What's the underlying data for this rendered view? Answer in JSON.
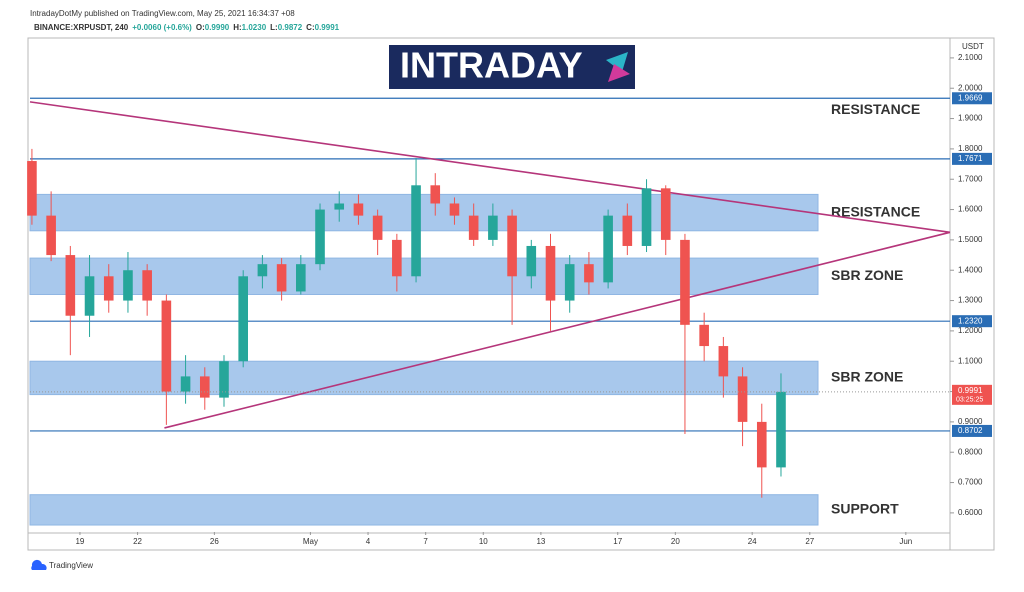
{
  "header": {
    "published": "IntradayDotMy published on TradingView.com, May 25, 2021 16:34:37 +08",
    "symbol": "BINANCE:XRPUSDT, 240",
    "ohlc": [
      {
        "label": "O:",
        "value": "0.9990"
      },
      {
        "label": "H:",
        "value": "1.0230"
      },
      {
        "label": "L:",
        "value": "0.9872"
      },
      {
        "label": "C:",
        "value": "0.9991"
      }
    ],
    "change": "+0.0060 (+0.6%)"
  },
  "logo": "INTRADAY",
  "footer": "TradingView",
  "chart_data": {
    "type": "candlestick",
    "currency": "USDT",
    "xlim": [
      16.4,
      64.3
    ],
    "ylim": [
      0.537,
      2.159
    ],
    "xticks": [
      19,
      22,
      26,
      {
        "value": 31,
        "label": "May"
      },
      {
        "value": 34,
        "label": "4"
      },
      {
        "value": 37,
        "label": "7"
      },
      {
        "value": 40,
        "label": "10"
      },
      {
        "value": 43,
        "label": "13"
      },
      {
        "value": 47,
        "label": "17"
      },
      {
        "value": 50,
        "label": "20"
      },
      {
        "value": 54,
        "label": "24"
      },
      {
        "value": 57,
        "label": "27"
      },
      {
        "value": 62,
        "label": "Jun"
      }
    ],
    "yticks": [
      {
        "value": 0.6,
        "label": "0.6000"
      },
      {
        "value": 0.7,
        "label": "0.7000"
      },
      {
        "value": 0.8,
        "label": "0.8000"
      },
      {
        "value": 0.9,
        "label": "0.9000"
      },
      {
        "value": 1.0,
        "label": "1.0000"
      },
      {
        "value": 1.1,
        "label": "1.1000"
      },
      {
        "value": 1.2,
        "label": "1.2000"
      },
      {
        "value": 1.3,
        "label": "1.3000"
      },
      {
        "value": 1.4,
        "label": "1.4000"
      },
      {
        "value": 1.5,
        "label": "1.5000"
      },
      {
        "value": 1.6,
        "label": "1.6000"
      },
      {
        "value": 1.7,
        "label": "1.7000"
      },
      {
        "value": 1.8,
        "label": "1.8000"
      },
      {
        "value": 1.9,
        "label": "1.9000"
      },
      {
        "value": 2.0,
        "label": "2.0000"
      },
      {
        "value": 2.1,
        "label": "2.1000"
      }
    ],
    "up_color": "#26a69a",
    "down_color": "#ef5350",
    "candles": {
      "x": [
        16,
        17,
        18,
        19,
        20,
        21,
        22,
        23,
        24,
        25,
        26,
        27,
        28,
        29,
        30,
        31,
        32,
        33,
        34,
        35,
        36,
        37,
        38,
        39,
        40,
        41,
        42,
        43,
        44,
        45,
        46,
        47,
        48,
        49,
        50,
        51,
        52,
        53,
        54,
        55
      ],
      "open": [
        1.76,
        1.58,
        1.45,
        1.25,
        1.38,
        1.3,
        1.4,
        1.3,
        1.0,
        1.05,
        0.98,
        1.1,
        1.38,
        1.42,
        1.33,
        1.42,
        1.6,
        1.62,
        1.58,
        1.5,
        1.38,
        1.68,
        1.62,
        1.58,
        1.5,
        1.58,
        1.38,
        1.48,
        1.3,
        1.42,
        1.36,
        1.58,
        1.48,
        1.67,
        1.5,
        1.22,
        1.15,
        1.05,
        0.9,
        0.75
      ],
      "high": [
        1.8,
        1.66,
        1.48,
        1.45,
        1.42,
        1.46,
        1.42,
        1.32,
        1.12,
        1.08,
        1.12,
        1.4,
        1.45,
        1.44,
        1.45,
        1.62,
        1.66,
        1.65,
        1.6,
        1.52,
        1.77,
        1.72,
        1.64,
        1.62,
        1.62,
        1.6,
        1.5,
        1.52,
        1.45,
        1.46,
        1.6,
        1.62,
        1.7,
        1.68,
        1.52,
        1.26,
        1.18,
        1.08,
        0.96,
        1.06
      ],
      "low": [
        1.55,
        1.43,
        1.12,
        1.18,
        1.26,
        1.26,
        1.25,
        0.89,
        0.96,
        0.94,
        0.95,
        1.08,
        1.34,
        1.3,
        1.32,
        1.4,
        1.56,
        1.55,
        1.45,
        1.33,
        1.36,
        1.58,
        1.55,
        1.48,
        1.48,
        1.22,
        1.34,
        1.2,
        1.26,
        1.32,
        1.34,
        1.45,
        1.46,
        1.45,
        0.86,
        1.1,
        0.98,
        0.82,
        0.65,
        0.72
      ],
      "close": [
        1.58,
        1.45,
        1.25,
        1.38,
        1.3,
        1.4,
        1.3,
        1.0,
        1.05,
        0.98,
        1.1,
        1.38,
        1.42,
        1.33,
        1.42,
        1.6,
        1.62,
        1.58,
        1.5,
        1.38,
        1.68,
        1.62,
        1.58,
        1.5,
        1.58,
        1.38,
        1.48,
        1.3,
        1.42,
        1.36,
        1.58,
        1.48,
        1.67,
        1.5,
        1.22,
        1.15,
        1.05,
        0.9,
        0.75,
        0.9991
      ]
    },
    "levels": [
      {
        "value": 1.9669,
        "annotation": "RESISTANCE"
      },
      1.7671,
      {
        "value": 1.232,
        "label": "1.2320"
      },
      0.8702
    ],
    "level_color": "#2a6db5",
    "zones": [
      {
        "low": 1.53,
        "high": 1.65,
        "annotation": "RESISTANCE"
      },
      {
        "low": 1.32,
        "high": 1.44,
        "annotation": "SBR ZONE"
      },
      {
        "low": 0.99,
        "high": 1.1,
        "annotation": "SBR ZONE"
      },
      {
        "low": 0.56,
        "high": 0.66,
        "annotation": "SUPPORT"
      }
    ],
    "trendlines": [
      {
        "x": [
          16.4,
          64.3
        ],
        "y": [
          1.955,
          1.525
        ]
      },
      {
        "x": [
          23.4,
          64.3
        ],
        "y": [
          0.88,
          1.525
        ]
      }
    ],
    "trend_color": "#b5357a",
    "last": {
      "value": 0.9991,
      "countdown": "03:25:25",
      "color": "#ef5350"
    }
  }
}
